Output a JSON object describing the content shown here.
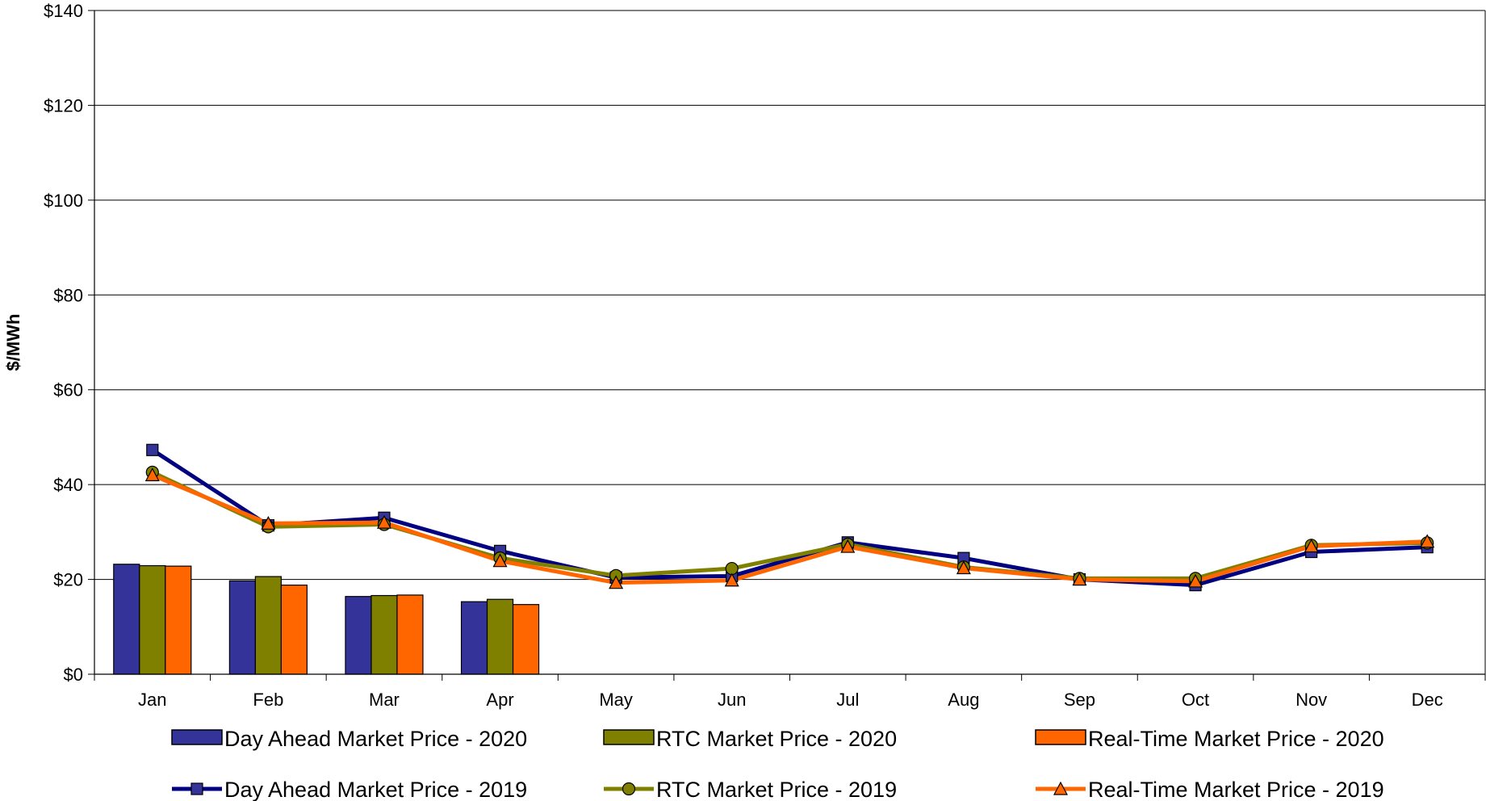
{
  "chart_data": {
    "type": "bar",
    "categories": [
      "Jan",
      "Feb",
      "Mar",
      "Apr",
      "May",
      "Jun",
      "Jul",
      "Aug",
      "Sep",
      "Oct",
      "Nov",
      "Dec"
    ],
    "ylabel": "$/MWh",
    "ylim": [
      0,
      140
    ],
    "yticks": [
      0,
      20,
      40,
      60,
      80,
      100,
      120,
      140
    ],
    "ytick_labels": [
      "$0",
      "$20",
      "$40",
      "$60",
      "$80",
      "$100",
      "$120",
      "$140"
    ],
    "grid": true,
    "legend_position": "bottom",
    "bar_series": [
      {
        "name": "Day Ahead Market Price - 2020",
        "color": "#333399",
        "values": [
          23.2,
          19.7,
          16.4,
          15.3,
          null,
          null,
          null,
          null,
          null,
          null,
          null,
          null
        ]
      },
      {
        "name": "RTC Market Price - 2020",
        "color": "#808000",
        "values": [
          22.9,
          20.6,
          16.6,
          15.8,
          null,
          null,
          null,
          null,
          null,
          null,
          null,
          null
        ]
      },
      {
        "name": "Real-Time Market Price - 2020",
        "color": "#FF6600",
        "values": [
          22.8,
          18.8,
          16.7,
          14.7,
          null,
          null,
          null,
          null,
          null,
          null,
          null,
          null
        ]
      }
    ],
    "line_series": [
      {
        "name": "Day Ahead Market Price - 2019",
        "color": "#000080",
        "marker": "square",
        "marker_fill": "#333399",
        "values": [
          47.3,
          31.4,
          33.0,
          26.0,
          20.4,
          20.7,
          27.8,
          24.5,
          20.0,
          18.8,
          25.8,
          26.8
        ]
      },
      {
        "name": "RTC Market Price - 2019",
        "color": "#808000",
        "marker": "circle",
        "marker_fill": "#808000",
        "values": [
          42.6,
          31.1,
          31.6,
          24.5,
          20.8,
          22.3,
          27.4,
          22.6,
          20.2,
          20.2,
          27.2,
          27.7
        ]
      },
      {
        "name": "Real-Time Market Price - 2019",
        "color": "#FF6600",
        "marker": "triangle",
        "marker_fill": "#FF6600",
        "values": [
          42.0,
          31.8,
          32.0,
          23.9,
          19.3,
          19.8,
          26.9,
          22.4,
          20.0,
          19.6,
          27.0,
          28.0
        ]
      }
    ]
  }
}
